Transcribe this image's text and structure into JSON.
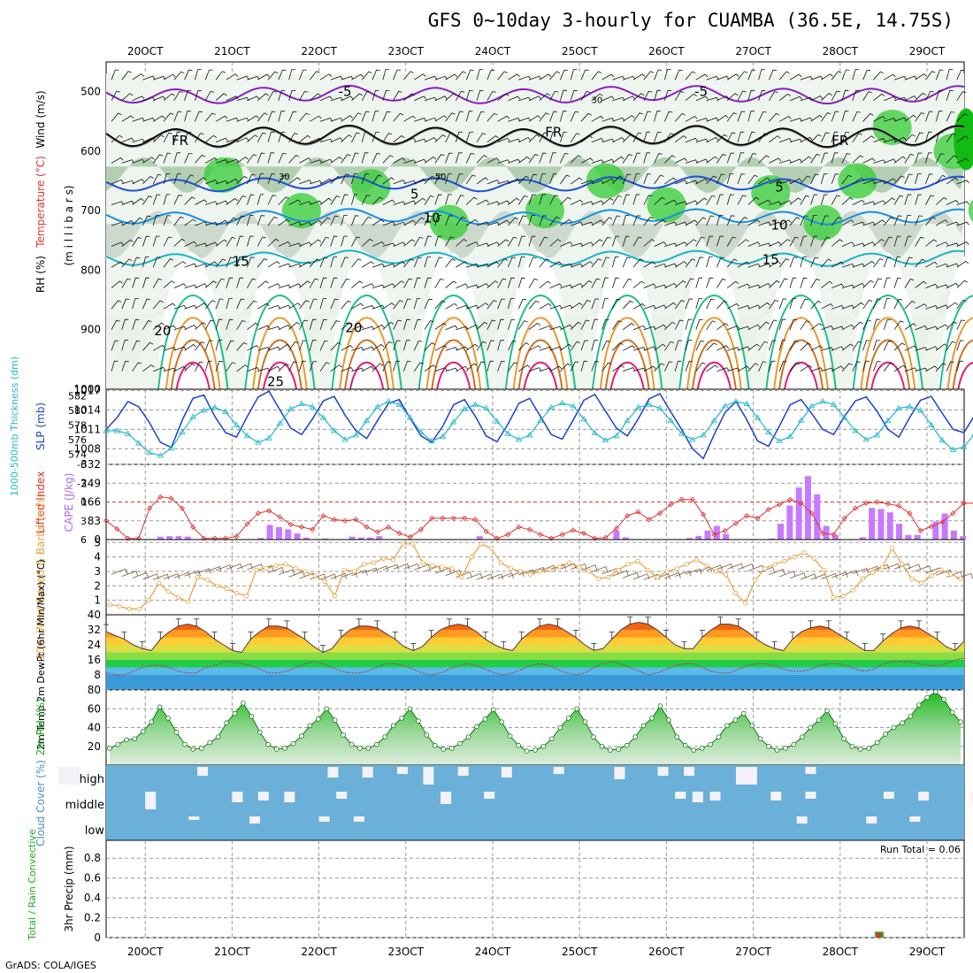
{
  "title": "GFS 0~10day 3-hourly for CUAMBA (36.5E, 14.75S)",
  "footer": "GrADS: COLA/IGES",
  "date_labels": [
    "20OCT",
    "21OCT",
    "22OCT",
    "23OCT",
    "24OCT",
    "25OCT",
    "26OCT",
    "27OCT",
    "28OCT",
    "29OCT"
  ],
  "colors": {
    "rh": "#33cc33",
    "temp_iso_minus5": "#8a1fc0",
    "temp_iso_5": "#1f4fd8",
    "temp_iso_10": "#1a8fe0",
    "temp_iso_15": "#1ab4c8",
    "temp_iso_20": "#1fbf8a",
    "temp_iso_25": "#e89a2a",
    "temp_iso_30": "#e01f7a",
    "slp": "#1f3fd0",
    "thickness": "#22b8c8",
    "cape": "#c77aff",
    "lifted_index": "#dd3333",
    "wind_speed": "#e8a040",
    "dewpoint": "#a04060",
    "cloud": "#6ab0d8",
    "cloud_fill": "#f4f2f8"
  },
  "chart_data": [
    {
      "panel": "upper_air",
      "type": "heatmap",
      "ylabel": [
        "RH (%)",
        "Temperature (°C)",
        "Wind (m/s)"
      ],
      "ylabel_unit": "(m i l l i b a r s)",
      "yticks": [
        500,
        600,
        700,
        800,
        900,
        1000
      ],
      "ylim": [
        1000,
        450
      ],
      "isotherm_labels": [
        {
          "text": "-5",
          "color": "#8a1fc0"
        },
        {
          "text": "-5",
          "color": "#8a1fc0"
        },
        {
          "text": "FR",
          "color": "#000000"
        },
        {
          "text": "FR",
          "color": "#000000"
        },
        {
          "text": "FR",
          "color": "#000000"
        },
        {
          "text": "5",
          "color": "#1f4fd8"
        },
        {
          "text": "5",
          "color": "#1f4fd8"
        },
        {
          "text": "10",
          "color": "#1a8fe0"
        },
        {
          "text": "10",
          "color": "#1a8fe0"
        },
        {
          "text": "15",
          "color": "#1ab4c8"
        },
        {
          "text": "15",
          "color": "#1ab4c8"
        },
        {
          "text": "20",
          "color": "#1fbf8a"
        },
        {
          "text": "20",
          "color": "#1fbf8a"
        },
        {
          "text": "25",
          "color": "#e89a2a"
        },
        {
          "text": "30",
          "color": "#888888"
        },
        {
          "text": "30",
          "color": "#888888"
        },
        {
          "text": "50",
          "color": "#888888"
        }
      ]
    },
    {
      "panel": "slp_thickness",
      "type": "line",
      "ylabel_left": "1000-500mb Thickness (dm)",
      "ylabel_right": "SLP (mb)",
      "yticks_thickness": [
        574,
        576,
        578,
        580,
        582
      ],
      "yticks_slp": [
        1008,
        1011,
        1014,
        1017
      ],
      "series": [
        {
          "name": "SLP (mb)",
          "values": [
            1011.0,
            1012.8,
            1015.3,
            1014.5,
            1012.0,
            1009.0,
            1008.2,
            1012.4,
            1015.8,
            1016.3,
            1013.0,
            1010.5,
            1009.8,
            1013.0,
            1016.0,
            1016.9,
            1014.0,
            1011.2,
            1010.2,
            1012.6,
            1015.4,
            1016.1,
            1013.2,
            1010.8,
            1009.6,
            1012.4,
            1015.0,
            1015.6,
            1012.7,
            1010.0,
            1009.0,
            1011.5,
            1014.8,
            1015.6,
            1013.0,
            1010.0,
            1009.1,
            1011.8,
            1015.0,
            1015.8,
            1013.0,
            1010.2,
            1009.5,
            1012.4,
            1015.5,
            1016.4,
            1013.8,
            1011.2,
            1010.0,
            1012.6,
            1015.7,
            1016.5,
            1013.7,
            1011.0,
            1008.0,
            1006.5,
            1010.2,
            1013.6,
            1015.3,
            1012.5,
            1009.2,
            1008.4,
            1011.5,
            1014.8,
            1015.6,
            1013.4,
            1011.0,
            1010.2,
            1013.0,
            1015.4,
            1016.0,
            1013.8,
            1011.0,
            1009.8,
            1012.8,
            1015.5,
            1016.1,
            1013.5,
            1011.0,
            1010.5,
            1013.2,
            1016.2,
            1017.0
          ]
        },
        {
          "name": "Thickness (dm)",
          "values": [
            577.2,
            577.2,
            576.8,
            575.5,
            574.2,
            573.8,
            574.8,
            577.0,
            579.1,
            580.0,
            580.4,
            579.8,
            578.0,
            576.5,
            575.6,
            576.2,
            578.2,
            580.2,
            580.9,
            580.5,
            579.0,
            577.2,
            576.0,
            576.6,
            578.6,
            580.5,
            581.2,
            580.8,
            579.0,
            577.0,
            575.8,
            576.4,
            578.4,
            580.2,
            580.8,
            580.3,
            578.5,
            576.8,
            576.0,
            576.6,
            578.6,
            580.4,
            581.0,
            580.6,
            578.8,
            576.9,
            575.9,
            576.5,
            578.6,
            580.4,
            580.8,
            580.3,
            578.6,
            576.8,
            576.0,
            576.6,
            578.6,
            580.6,
            581.2,
            580.9,
            579.0,
            577.0,
            575.8,
            576.4,
            578.6,
            580.6,
            581.2,
            580.8,
            579.0,
            577.2,
            576.0,
            576.6,
            578.6,
            580.3,
            580.5,
            580.0,
            578.0,
            575.9,
            574.6,
            575.0,
            576.8,
            578.2
          ]
        }
      ]
    },
    {
      "panel": "cape_li",
      "type": "bar",
      "ylabel_left": "Lifted Index",
      "ylabel_right": "CAPE (J/kg)",
      "yticks_li": [
        -6,
        -3,
        0,
        3,
        6
      ],
      "yticks_cape": [
        0,
        83,
        166,
        249,
        332
      ],
      "series": [
        {
          "name": "CAPE (J/kg)",
          "values": [
            0,
            0,
            0,
            0,
            0,
            13,
            15,
            15,
            13,
            0,
            0,
            0,
            0,
            0,
            0,
            0,
            7,
            65,
            55,
            45,
            27,
            9,
            0,
            5,
            0,
            0,
            13,
            9,
            9,
            15,
            0,
            0,
            0,
            0,
            0,
            0,
            0,
            0,
            0,
            0,
            15,
            0,
            0,
            0,
            0,
            0,
            0,
            0,
            0,
            0,
            0,
            0,
            0,
            0,
            0,
            40,
            10,
            0,
            0,
            0,
            0,
            0,
            0,
            7,
            16,
            40,
            60,
            25,
            0,
            0,
            0,
            0,
            5,
            70,
            150,
            230,
            280,
            200,
            60,
            20,
            0,
            0,
            10,
            140,
            135,
            120,
            70,
            20,
            20,
            0,
            80,
            115,
            40,
            15
          ]
        },
        {
          "name": "Lifted Index",
          "values": [
            3.0,
            4.3,
            5.8,
            5.8,
            1.0,
            -0.8,
            -0.6,
            1.0,
            4.0,
            5.8,
            5.8,
            5.8,
            5.5,
            3.5,
            1.8,
            1.4,
            2.4,
            3.6,
            4.0,
            4.4,
            2.2,
            2.8,
            3.0,
            2.8,
            4.0,
            4.8,
            4.0,
            5.0,
            5.6,
            4.4,
            2.6,
            2.6,
            2.6,
            2.6,
            2.8,
            4.7,
            5.8,
            5.2,
            4.0,
            4.4,
            5.2,
            5.8,
            5.2,
            4.5,
            5.0,
            5.8,
            5.7,
            4.2,
            2.2,
            1.6,
            2.8,
            1.8,
            0.4,
            -0.4,
            -0.4,
            2.0,
            5.2,
            4.6,
            3.4,
            2.2,
            2.6,
            1.2,
            0.4,
            -0.4,
            0.2,
            1.8,
            5.0,
            5.2,
            2.6,
            1.0,
            0.2,
            0.0,
            0.3,
            0.6,
            1.8,
            4.6,
            3.9,
            3.2,
            1.8,
            0.2,
            0.2,
            -0.1,
            0.4,
            -0.2,
            0.5,
            0.0,
            -0.2,
            0.4,
            0.9,
            0.6,
            0.3
          ]
        }
      ]
    },
    {
      "panel": "wind10m",
      "type": "line",
      "ylabel": "10m Wind Speed & Barbs (m/s)",
      "yticks": [
        1,
        2,
        3,
        4,
        5
      ],
      "ylim": [
        0,
        5.2
      ],
      "series": [
        {
          "name": "10m Wind Speed (m/s)",
          "values": [
            0.7,
            0.6,
            0.4,
            0.4,
            1.0,
            2.2,
            1.6,
            1.2,
            0.9,
            2.6,
            2.4,
            2.0,
            1.8,
            1.5,
            1.3,
            3.1,
            3.2,
            3.4,
            3.5,
            3.2,
            3.0,
            2.7,
            2.3,
            1.3,
            3.1,
            3.0,
            3.5,
            3.6,
            3.9,
            3.8,
            4.9,
            4.9,
            3.6,
            3.4,
            3.3,
            3.2,
            2.6,
            4.0,
            4.9,
            4.6,
            3.6,
            3.2,
            3.0,
            2.8,
            3.0,
            3.1,
            3.3,
            3.6,
            3.3,
            3.0,
            2.5,
            2.6,
            3.1,
            3.5,
            3.7,
            3.1,
            2.6,
            3.0,
            3.2,
            3.5,
            3.8,
            3.4,
            3.0,
            2.8,
            1.5,
            0.8,
            2.4,
            3.2,
            3.5,
            3.7,
            4.0,
            4.3,
            3.9,
            3.1,
            1.2,
            1.3,
            1.7,
            2.5,
            2.9,
            3.3,
            4.6,
            3.5,
            2.5,
            2.2,
            2.7,
            3.1,
            2.8,
            2.5
          ]
        }
      ]
    },
    {
      "panel": "temp2m",
      "type": "area",
      "ylabel": "2m Temp 2m DewPt (6hr Min/Max) (°C)",
      "yticks": [
        8,
        16,
        24,
        32,
        40
      ],
      "ylim": [
        0,
        40
      ],
      "series": [
        {
          "name": "2m Temp (°C)",
          "values": [
            31,
            29,
            27,
            24,
            22,
            21,
            27,
            31,
            34,
            35,
            34,
            31,
            27,
            24,
            21,
            20,
            27,
            31,
            34,
            34,
            33,
            30,
            27,
            23,
            20,
            22,
            28,
            32,
            34,
            34,
            33,
            30,
            27,
            23,
            21,
            23,
            28,
            32,
            34,
            35,
            34,
            31,
            27,
            24,
            22,
            21,
            27,
            31,
            34,
            35,
            34,
            31,
            28,
            24,
            21,
            22,
            27,
            32,
            35,
            36,
            35,
            32,
            28,
            24,
            22,
            22,
            28,
            32,
            35,
            35,
            34,
            31,
            27,
            24,
            22,
            21,
            27,
            31,
            33,
            34,
            33,
            30,
            27,
            24,
            21,
            21,
            26,
            30,
            33,
            34,
            33,
            30,
            27,
            23,
            21,
            26
          ]
        },
        {
          "name": "2m DewPt (°C)",
          "values": [
            9,
            8,
            8,
            10,
            12,
            13,
            13,
            12,
            10,
            9,
            9,
            12,
            13,
            15,
            15,
            14,
            13,
            11,
            9,
            9,
            10,
            12,
            14,
            15,
            14,
            12,
            10,
            9,
            9,
            10,
            12,
            14,
            14,
            13,
            11,
            9,
            8,
            9,
            11,
            13,
            14,
            13,
            11,
            9,
            8,
            9,
            11,
            13,
            14,
            13,
            11,
            9,
            8,
            9,
            12,
            14,
            15,
            14,
            12,
            10,
            8,
            9,
            11,
            13,
            14,
            14,
            12,
            10,
            9,
            9,
            11,
            13,
            14,
            14,
            13,
            11,
            10,
            10,
            11,
            13,
            14,
            14,
            13,
            11,
            10,
            11,
            14,
            15,
            15,
            15,
            14,
            13,
            13,
            14,
            16,
            17
          ]
        }
      ]
    },
    {
      "panel": "rh2m",
      "type": "area",
      "ylabel": "2m RH (%)",
      "yticks": [
        20,
        40,
        60,
        80
      ],
      "ylim": [
        0,
        80
      ],
      "series": [
        {
          "name": "2m RH (%)",
          "values": [
            18,
            22,
            27,
            28,
            36,
            46,
            62,
            50,
            35,
            22,
            17,
            18,
            24,
            30,
            45,
            55,
            66,
            52,
            35,
            22,
            17,
            18,
            23,
            31,
            42,
            49,
            60,
            48,
            32,
            22,
            18,
            18,
            22,
            30,
            42,
            50,
            60,
            47,
            32,
            21,
            17,
            18,
            23,
            30,
            41,
            49,
            59,
            46,
            31,
            21,
            15,
            16,
            20,
            28,
            40,
            50,
            60,
            46,
            30,
            20,
            16,
            17,
            21,
            30,
            42,
            50,
            63,
            48,
            30,
            21,
            16,
            18,
            22,
            30,
            42,
            48,
            55,
            42,
            28,
            20,
            16,
            18,
            22,
            30,
            40,
            48,
            58,
            44,
            28,
            20,
            17,
            18,
            24,
            33,
            40,
            45,
            52,
            64,
            72,
            78,
            70,
            56,
            46
          ]
        }
      ]
    },
    {
      "panel": "cloud_cover",
      "type": "bar",
      "ylabel": "Cloud Cover (%)",
      "categories": [
        "high",
        "middle",
        "low"
      ]
    },
    {
      "panel": "precip",
      "type": "bar",
      "ylabel_left": "Total / Rain Convective",
      "ylabel": "3hr Precip (mm)",
      "yticks": [
        0,
        0.2,
        0.4,
        0.6,
        0.8
      ],
      "ylim": [
        0,
        0.98
      ],
      "run_total_label": "Run Total = 0.06",
      "series": [
        {
          "name": "3hr Precip (mm)",
          "points": [
            {
              "day_index": 8.45,
              "value": 0.06
            }
          ]
        }
      ]
    }
  ]
}
